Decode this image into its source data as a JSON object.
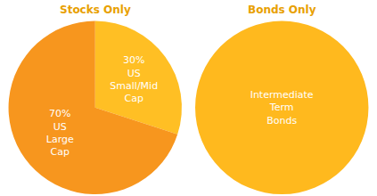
{
  "chart_data": [
    {
      "type": "pie",
      "title": "Stocks Only",
      "categories": [
        "US Small/Mid Cap",
        "US Large Cap"
      ],
      "values": [
        30,
        70
      ],
      "value_labels": [
        "30%",
        "70%"
      ],
      "data_labels": true,
      "colors": [
        "#FFBF24",
        "#F7961E"
      ]
    },
    {
      "type": "pie",
      "title": "Bonds Only",
      "categories": [
        "Intermediate Term Bonds"
      ],
      "values": [
        100
      ],
      "data_labels": false,
      "colors": [
        "#FFB91E"
      ]
    }
  ]
}
